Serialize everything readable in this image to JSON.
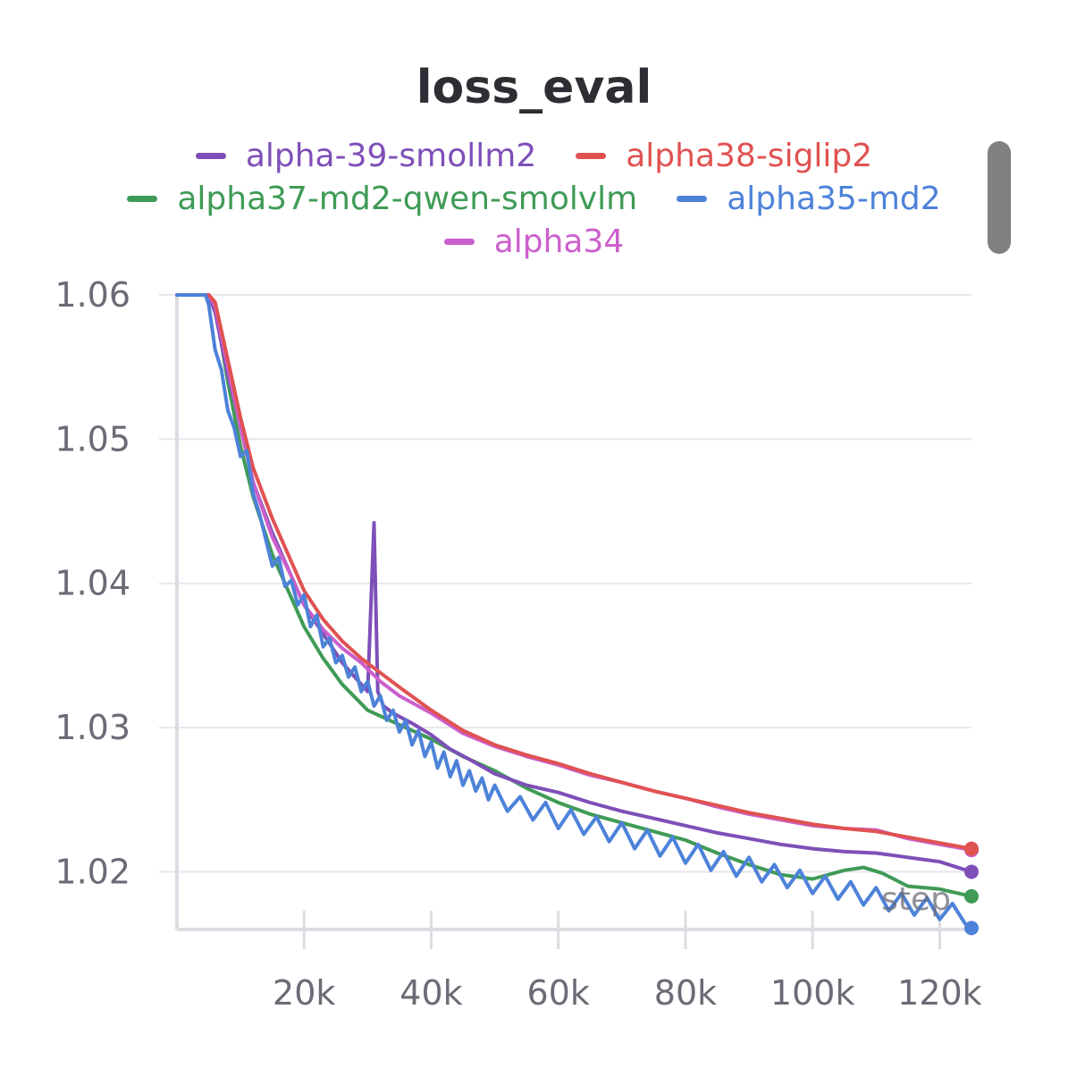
{
  "chart_data": {
    "type": "line",
    "title": "loss_eval",
    "xlabel": "step",
    "ylabel": "",
    "xlim": [
      0,
      125000
    ],
    "ylim": [
      1.016,
      1.06
    ],
    "xticks": [
      20000,
      40000,
      60000,
      80000,
      100000,
      120000
    ],
    "xtick_labels": [
      "20k",
      "40k",
      "60k",
      "80k",
      "100k",
      "120k"
    ],
    "yticks": [
      1.02,
      1.03,
      1.04,
      1.05,
      1.06
    ],
    "ytick_labels": [
      "1.02",
      "1.03",
      "1.04",
      "1.05",
      "1.06"
    ],
    "grid": true,
    "legend_position": "top-center",
    "series": [
      {
        "name": "alpha-39-smollm2",
        "color": "#7e4fb8",
        "x": [
          0,
          5000,
          6000,
          8000,
          10000,
          12000,
          15000,
          18000,
          20000,
          23000,
          26000,
          29000,
          30000,
          31000,
          31600,
          32500,
          34000,
          37000,
          40000,
          43000,
          46000,
          50000,
          55000,
          60000,
          65000,
          70000,
          75000,
          80000,
          85000,
          90000,
          95000,
          100000,
          105000,
          110000,
          115000,
          120000,
          125000
        ],
        "y": [
          1.06,
          1.06,
          1.0588,
          1.0545,
          1.051,
          1.047,
          1.0435,
          1.0405,
          1.0385,
          1.0365,
          1.0345,
          1.033,
          1.0325,
          1.0442,
          1.0325,
          1.0315,
          1.031,
          1.0303,
          1.0295,
          1.0285,
          1.0278,
          1.0268,
          1.026,
          1.0255,
          1.0248,
          1.0242,
          1.0237,
          1.0232,
          1.0227,
          1.0223,
          1.0219,
          1.0216,
          1.0214,
          1.0213,
          1.021,
          1.0207,
          1.02
        ],
        "end_marker": true
      },
      {
        "name": "alpha38-siglip2",
        "color": "#e05252",
        "x": [
          0,
          5000,
          6000,
          8000,
          10000,
          12000,
          15000,
          18000,
          20000,
          23000,
          26000,
          29000,
          32000,
          35000,
          40000,
          45000,
          50000,
          55000,
          60000,
          65000,
          70000,
          75000,
          80000,
          85000,
          90000,
          95000,
          100000,
          105000,
          110000,
          115000,
          120000,
          125000
        ],
        "y": [
          1.06,
          1.06,
          1.0595,
          1.0555,
          1.0515,
          1.048,
          1.0445,
          1.0415,
          1.0395,
          1.0375,
          1.036,
          1.0348,
          1.0338,
          1.0328,
          1.0312,
          1.0298,
          1.0288,
          1.0281,
          1.0275,
          1.0268,
          1.0262,
          1.0256,
          1.0251,
          1.0246,
          1.0241,
          1.0237,
          1.0233,
          1.023,
          1.0228,
          1.0224,
          1.022,
          1.0216
        ],
        "end_marker": true
      },
      {
        "name": "alpha37-md2-qwen-smolvlm",
        "color": "#3f9b56",
        "x": [
          0,
          5000,
          6000,
          8000,
          10000,
          12000,
          15000,
          18000,
          20000,
          23000,
          26000,
          30000,
          35000,
          40000,
          45000,
          50000,
          55000,
          60000,
          65000,
          70000,
          75000,
          80000,
          85000,
          90000,
          95000,
          100000,
          105000,
          108000,
          111000,
          115000,
          120000,
          125000
        ],
        "y": [
          1.06,
          1.06,
          1.0592,
          1.054,
          1.0495,
          1.046,
          1.042,
          1.039,
          1.037,
          1.0348,
          1.033,
          1.0312,
          1.0302,
          1.0292,
          1.028,
          1.027,
          1.0258,
          1.0248,
          1.024,
          1.0234,
          1.0228,
          1.0222,
          1.0213,
          1.0205,
          1.0198,
          1.0195,
          1.0201,
          1.0203,
          1.0199,
          1.019,
          1.0188,
          1.0183
        ],
        "end_marker": true
      },
      {
        "name": "alpha35-md2",
        "color": "#4d82d9",
        "x": [
          0,
          4500,
          5000,
          6000,
          7000,
          8000,
          9000,
          10000,
          11000,
          12000,
          13000,
          14000,
          15000,
          16000,
          17000,
          18000,
          19000,
          20000,
          21000,
          22000,
          23000,
          24000,
          25000,
          26000,
          27000,
          28000,
          29000,
          30000,
          31000,
          32000,
          33000,
          34000,
          35000,
          36000,
          37000,
          38000,
          39000,
          40000,
          41000,
          42000,
          43000,
          44000,
          45000,
          46000,
          47000,
          48000,
          49000,
          50000,
          52000,
          54000,
          56000,
          58000,
          60000,
          62000,
          64000,
          66000,
          68000,
          70000,
          72000,
          74000,
          76000,
          78000,
          80000,
          82000,
          84000,
          86000,
          88000,
          90000,
          92000,
          94000,
          96000,
          98000,
          100000,
          102000,
          104000,
          106000,
          108000,
          110000,
          112000,
          114000,
          116000,
          118000,
          120000,
          122000,
          124000,
          125000
        ],
        "y": [
          1.06,
          1.06,
          1.0593,
          1.0562,
          1.0548,
          1.052,
          1.0508,
          1.0488,
          1.0492,
          1.0462,
          1.0448,
          1.043,
          1.0412,
          1.0418,
          1.0398,
          1.0402,
          1.0385,
          1.0392,
          1.037,
          1.0378,
          1.0356,
          1.0362,
          1.0345,
          1.035,
          1.0335,
          1.0342,
          1.0325,
          1.0332,
          1.0315,
          1.0322,
          1.0305,
          1.0312,
          1.0297,
          1.0305,
          1.0288,
          1.0298,
          1.028,
          1.029,
          1.0272,
          1.0283,
          1.0266,
          1.0277,
          1.026,
          1.027,
          1.0256,
          1.0265,
          1.025,
          1.026,
          1.0242,
          1.0252,
          1.0236,
          1.0248,
          1.023,
          1.0243,
          1.0226,
          1.0238,
          1.0221,
          1.0234,
          1.0216,
          1.0229,
          1.0211,
          1.0224,
          1.0206,
          1.0219,
          1.0201,
          1.0214,
          1.0197,
          1.021,
          1.0193,
          1.0205,
          1.0189,
          1.0201,
          1.0185,
          1.0197,
          1.0181,
          1.0193,
          1.0177,
          1.0189,
          1.0173,
          1.0185,
          1.017,
          1.0182,
          1.0167,
          1.0178,
          1.0164,
          1.0161
        ],
        "end_marker": true
      },
      {
        "name": "alpha34",
        "color": "#cc5fcc",
        "x": [
          0,
          5000,
          6000,
          8000,
          10000,
          12000,
          15000,
          18000,
          20000,
          23000,
          26000,
          29000,
          32000,
          35000,
          40000,
          45000,
          50000,
          55000,
          60000,
          65000,
          70000,
          75000,
          80000,
          85000,
          90000,
          95000,
          100000,
          105000,
          110000,
          115000,
          120000,
          125000
        ],
        "y": [
          1.06,
          1.06,
          1.0592,
          1.055,
          1.0508,
          1.047,
          1.0432,
          1.0405,
          1.0385,
          1.0368,
          1.0355,
          1.0345,
          1.0332,
          1.0322,
          1.031,
          1.0296,
          1.0287,
          1.028,
          1.0274,
          1.0267,
          1.0262,
          1.0256,
          1.0251,
          1.0245,
          1.024,
          1.0236,
          1.0232,
          1.023,
          1.0229,
          1.0223,
          1.0219,
          1.0215
        ],
        "end_marker": true
      }
    ]
  }
}
